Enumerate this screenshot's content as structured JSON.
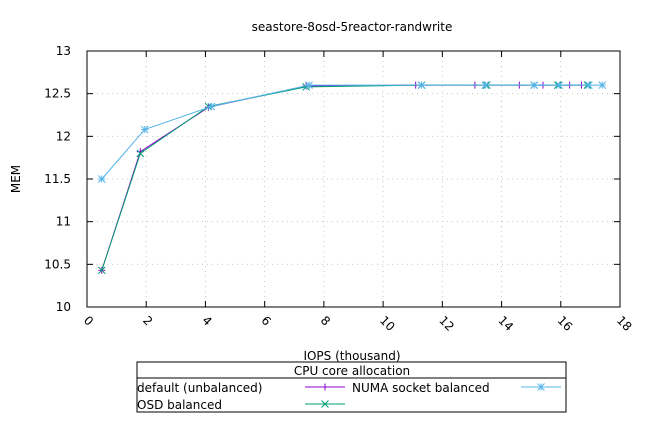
{
  "chart_data": {
    "type": "line",
    "title": "seastore-8osd-5reactor-randwrite",
    "xlabel": "IOPS (thousand)",
    "ylabel": "MEM",
    "xlim": [
      0,
      18
    ],
    "ylim": [
      10,
      13
    ],
    "xticks": [
      0,
      2,
      4,
      6,
      8,
      10,
      12,
      14,
      16,
      18
    ],
    "yticks": [
      10,
      10.5,
      11,
      11.5,
      12,
      12.5,
      13
    ],
    "ytick_labels": [
      "10",
      "10.5",
      "11",
      "11.5",
      "12",
      "12.5",
      "13"
    ],
    "grid": true,
    "legend": {
      "title": "CPU core allocation",
      "placement": "bottom"
    },
    "series": [
      {
        "name": "default (unbalanced)",
        "color": "#9400d3",
        "marker": "plus",
        "x": [
          0.5,
          1.8,
          4.1,
          7.4,
          11.1,
          13.1,
          14.6,
          15.4,
          16.3,
          16.7
        ],
        "y": [
          10.43,
          11.82,
          12.34,
          12.59,
          12.6,
          12.6,
          12.6,
          12.6,
          12.6,
          12.6
        ]
      },
      {
        "name": "NUMA socket balanced",
        "color": "#56b4e9",
        "marker": "star",
        "x": [
          0.5,
          1.95,
          4.2,
          7.5,
          11.3,
          13.45,
          15.1,
          15.95,
          16.95,
          17.4
        ],
        "y": [
          11.5,
          12.08,
          12.35,
          12.6,
          12.6,
          12.6,
          12.6,
          12.6,
          12.6,
          12.6
        ]
      },
      {
        "name": "OSD balanced",
        "color": "#009e73",
        "marker": "cross",
        "x": [
          0.5,
          1.8,
          4.1,
          7.4,
          11.3,
          13.5,
          15.1,
          15.9,
          16.9
        ],
        "y": [
          10.43,
          11.8,
          12.35,
          12.58,
          12.6,
          12.6,
          12.6,
          12.6,
          12.6
        ]
      }
    ]
  }
}
